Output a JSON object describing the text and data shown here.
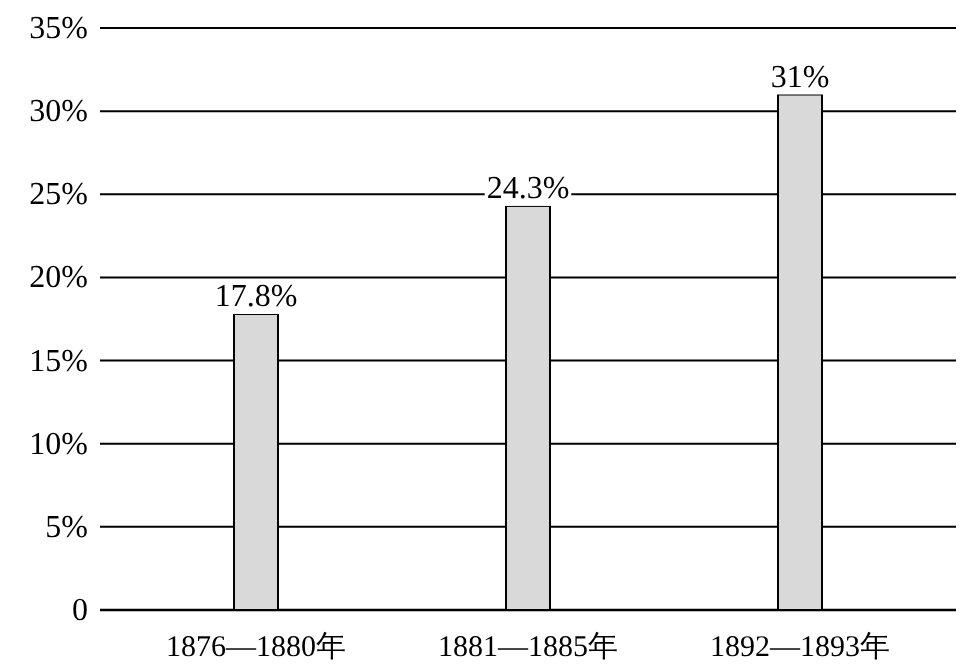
{
  "chart_data": {
    "type": "bar",
    "categories": [
      "1876—1880年",
      "1881—1885年",
      "1892—1893年"
    ],
    "values": [
      17.8,
      24.3,
      31
    ],
    "value_labels": [
      "17.8%",
      "24.3%",
      "31%"
    ],
    "color": "#d9d9d9",
    "ylim": [
      0,
      35
    ],
    "yticks": [
      0,
      {
        "value": 5,
        "label": "5%"
      },
      {
        "value": 10,
        "label": "10%"
      },
      {
        "value": 15,
        "label": "15%"
      },
      {
        "value": 20,
        "label": "20%"
      },
      {
        "value": 25,
        "label": "25%"
      },
      {
        "value": 30,
        "label": "30%"
      },
      {
        "value": 35,
        "label": "35%"
      }
    ],
    "grid": "y"
  }
}
